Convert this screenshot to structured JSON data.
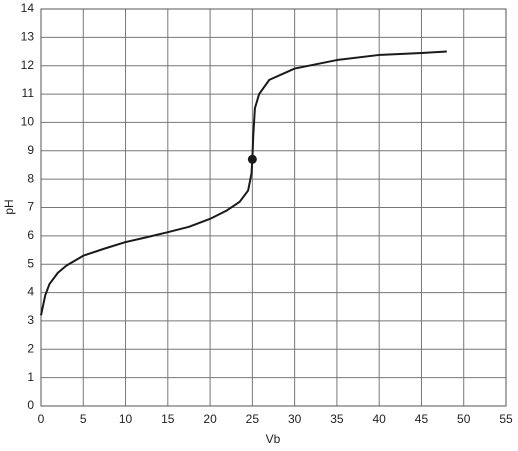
{
  "chart_data": {
    "type": "line",
    "x_label": "Vb",
    "y_label": "pH",
    "x": [
      0,
      0.5,
      1,
      2,
      3,
      5,
      7.5,
      10,
      12.5,
      15,
      17.5,
      20,
      22,
      23.5,
      24.5,
      24.9,
      25,
      25.1,
      25.3,
      25.8,
      27,
      30,
      35,
      40,
      45,
      48
    ],
    "series": [
      {
        "color": "#1a1a1a",
        "values": [
          3.2,
          3.9,
          4.3,
          4.7,
          4.95,
          5.3,
          5.55,
          5.78,
          5.95,
          6.13,
          6.32,
          6.6,
          6.9,
          7.2,
          7.6,
          8.2,
          8.7,
          9.5,
          10.5,
          11.0,
          11.5,
          11.9,
          12.2,
          12.38,
          12.45,
          12.5
        ]
      }
    ],
    "marker": {
      "x": 25,
      "y": 8.7
    },
    "xlim": [
      0,
      55
    ],
    "xticks": [
      0,
      5,
      10,
      15,
      20,
      25,
      30,
      35,
      40,
      45,
      50,
      55
    ],
    "ylim": [
      0,
      14
    ],
    "yticks": [
      0,
      1,
      2,
      3,
      4,
      5,
      6,
      7,
      8,
      9,
      10,
      11,
      12,
      13,
      14
    ],
    "grid": true
  }
}
